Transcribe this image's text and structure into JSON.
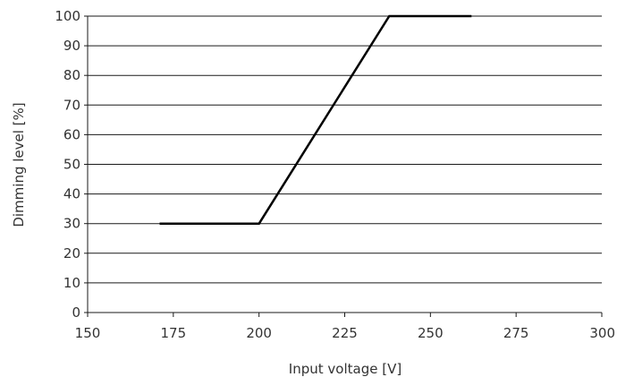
{
  "chart_data": {
    "type": "line",
    "title": "",
    "xlabel": "Input voltage [V]",
    "ylabel": "Dimming level [%]",
    "xlim": [
      150,
      300
    ],
    "ylim": [
      0,
      100
    ],
    "xticks": [
      "150",
      "175",
      "200",
      "225",
      "250",
      "275",
      "300"
    ],
    "yticks": [
      "0",
      "10",
      "20",
      "30",
      "40",
      "50",
      "60",
      "70",
      "80",
      "90",
      "100"
    ],
    "grid": "horizontal",
    "legend": "none",
    "series": [
      {
        "color": "#000000",
        "x": [
          171,
          200,
          238,
          262
        ],
        "y": [
          30,
          30,
          100,
          100
        ]
      }
    ]
  }
}
